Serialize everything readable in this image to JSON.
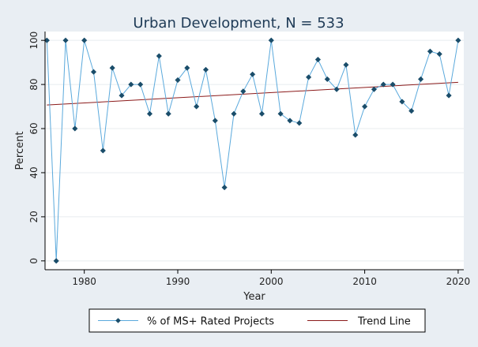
{
  "chart_data": {
    "type": "line",
    "title": "Urban Development, N = 533",
    "xlabel": "Year",
    "ylabel": "Percent",
    "xlim": [
      1975.8,
      2020.6
    ],
    "ylim": [
      -4,
      104
    ],
    "xticks": [
      1980,
      1990,
      2000,
      2010,
      2020
    ],
    "yticks": [
      0,
      20,
      40,
      60,
      80,
      100
    ],
    "grid": true,
    "legend_position": "bottom",
    "series": [
      {
        "name": "% of MS+ Rated Projects",
        "color": "#5aa9dc",
        "marker_color": "#1a4d6a",
        "x": [
          1976,
          1977,
          1978,
          1979,
          1980,
          1981,
          1982,
          1983,
          1984,
          1985,
          1986,
          1987,
          1988,
          1989,
          1990,
          1991,
          1992,
          1993,
          1994,
          1995,
          1996,
          1997,
          1998,
          1999,
          2000,
          2001,
          2002,
          2003,
          2004,
          2005,
          2006,
          2007,
          2008,
          2009,
          2010,
          2011,
          2012,
          2013,
          2014,
          2015,
          2016,
          2017,
          2018,
          2019,
          2020
        ],
        "values": [
          100,
          0,
          100,
          60,
          100,
          85.7,
          50,
          87.5,
          75,
          80,
          80,
          66.7,
          92.9,
          66.7,
          82,
          87.5,
          70,
          86.7,
          63.6,
          33.3,
          66.7,
          76.9,
          84.6,
          66.7,
          100,
          66.7,
          63.6,
          62.5,
          83.3,
          91.3,
          82.4,
          77.8,
          88.9,
          57.1,
          70,
          77.8,
          80,
          80,
          72.2,
          68,
          82.4,
          95,
          93.8,
          75,
          100
        ]
      },
      {
        "name": "Trend Line",
        "color": "#8b1a1a",
        "x": [
          1976,
          2020
        ],
        "values": [
          70.7,
          81.0
        ]
      }
    ]
  }
}
